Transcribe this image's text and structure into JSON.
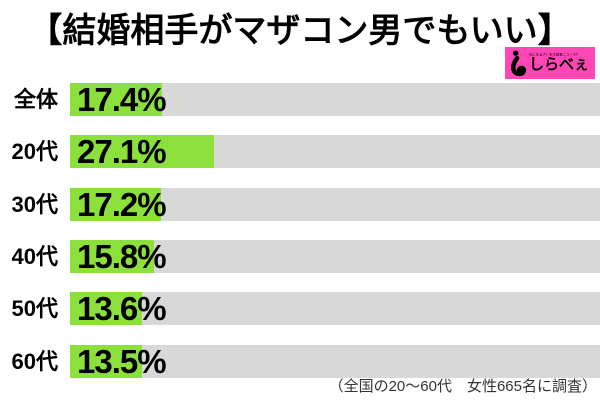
{
  "title": "【結婚相手がマザコン男でもいい】",
  "logo": {
    "name": "しらべぇ",
    "tagline": "気になるアレを大調査ニュース!!",
    "bg_color": "#FF46B4",
    "icon": "shirabee-mark-icon"
  },
  "footnote": "（全国の20〜60代　女性665名に調査）",
  "colors": {
    "bar_fill": "#8CE03C",
    "bar_track": "#D8D8D8",
    "text": "#000000",
    "footnote_text": "#333333",
    "logo_bg": "#FF46B4"
  },
  "chart_data": {
    "type": "bar",
    "orientation": "horizontal",
    "title": "【結婚相手がマザコン男でもいい】",
    "categories": [
      "全体",
      "20代",
      "30代",
      "40代",
      "50代",
      "60代"
    ],
    "values": [
      17.4,
      27.1,
      17.2,
      15.8,
      13.6,
      13.5
    ],
    "value_labels": [
      "17.4%",
      "27.1%",
      "17.2%",
      "15.8%",
      "13.6%",
      "13.5%"
    ],
    "unit": "%",
    "xlim": [
      0,
      100
    ],
    "grid": false,
    "legend": false,
    "note": "（全国の20〜60代　女性665名に調査）"
  }
}
